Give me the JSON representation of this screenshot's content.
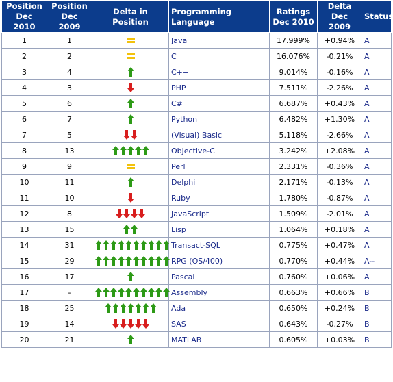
{
  "colors": {
    "header_bg": "#0c3c8c",
    "up_arrow": "#2d9a16",
    "down_arrow": "#d81e1e",
    "equal": "#f3c20c",
    "language_text": "#1a2a8a"
  },
  "headers": {
    "pos2010": [
      "Position",
      "Dec 2010"
    ],
    "pos2009": [
      "Position",
      "Dec 2009"
    ],
    "delta": "Delta in Position",
    "language": "Programming Language",
    "ratings": [
      "Ratings",
      "Dec 2010"
    ],
    "deltarating": [
      "Delta",
      "Dec 2009"
    ],
    "status": "Status"
  },
  "rows": [
    {
      "pos2010": "1",
      "pos2009": "1",
      "change": {
        "dir": "equal",
        "count": 1
      },
      "language": "Java",
      "rating": "17.999%",
      "delta": "+0.94%",
      "status": "A"
    },
    {
      "pos2010": "2",
      "pos2009": "2",
      "change": {
        "dir": "equal",
        "count": 1
      },
      "language": "C",
      "rating": "16.076%",
      "delta": "-0.21%",
      "status": "A"
    },
    {
      "pos2010": "3",
      "pos2009": "4",
      "change": {
        "dir": "up",
        "count": 1
      },
      "language": "C++",
      "rating": "9.014%",
      "delta": "-0.16%",
      "status": "A"
    },
    {
      "pos2010": "4",
      "pos2009": "3",
      "change": {
        "dir": "down",
        "count": 1
      },
      "language": "PHP",
      "rating": "7.511%",
      "delta": "-2.26%",
      "status": "A"
    },
    {
      "pos2010": "5",
      "pos2009": "6",
      "change": {
        "dir": "up",
        "count": 1
      },
      "language": "C#",
      "rating": "6.687%",
      "delta": "+0.43%",
      "status": "A"
    },
    {
      "pos2010": "6",
      "pos2009": "7",
      "change": {
        "dir": "up",
        "count": 1
      },
      "language": "Python",
      "rating": "6.482%",
      "delta": "+1.30%",
      "status": "A"
    },
    {
      "pos2010": "7",
      "pos2009": "5",
      "change": {
        "dir": "down",
        "count": 2
      },
      "language": "(Visual) Basic",
      "rating": "5.118%",
      "delta": "-2.66%",
      "status": "A"
    },
    {
      "pos2010": "8",
      "pos2009": "13",
      "change": {
        "dir": "up",
        "count": 5
      },
      "language": "Objective-C",
      "rating": "3.242%",
      "delta": "+2.08%",
      "status": "A"
    },
    {
      "pos2010": "9",
      "pos2009": "9",
      "change": {
        "dir": "equal",
        "count": 1
      },
      "language": "Perl",
      "rating": "2.331%",
      "delta": "-0.36%",
      "status": "A"
    },
    {
      "pos2010": "10",
      "pos2009": "11",
      "change": {
        "dir": "up",
        "count": 1
      },
      "language": "Delphi",
      "rating": "2.171%",
      "delta": "-0.13%",
      "status": "A"
    },
    {
      "pos2010": "11",
      "pos2009": "10",
      "change": {
        "dir": "down",
        "count": 1
      },
      "language": "Ruby",
      "rating": "1.780%",
      "delta": "-0.87%",
      "status": "A"
    },
    {
      "pos2010": "12",
      "pos2009": "8",
      "change": {
        "dir": "down",
        "count": 4
      },
      "language": "JavaScript",
      "rating": "1.509%",
      "delta": "-2.01%",
      "status": "A"
    },
    {
      "pos2010": "13",
      "pos2009": "15",
      "change": {
        "dir": "up",
        "count": 2
      },
      "language": "Lisp",
      "rating": "1.064%",
      "delta": "+0.18%",
      "status": "A"
    },
    {
      "pos2010": "14",
      "pos2009": "31",
      "change": {
        "dir": "up",
        "count": 10
      },
      "language": "Transact-SQL",
      "rating": "0.775%",
      "delta": "+0.47%",
      "status": "A"
    },
    {
      "pos2010": "15",
      "pos2009": "29",
      "change": {
        "dir": "up",
        "count": 10
      },
      "language": "RPG (OS/400)",
      "rating": "0.770%",
      "delta": "+0.44%",
      "status": "A--"
    },
    {
      "pos2010": "16",
      "pos2009": "17",
      "change": {
        "dir": "up",
        "count": 1
      },
      "language": "Pascal",
      "rating": "0.760%",
      "delta": "+0.06%",
      "status": "A"
    },
    {
      "pos2010": "17",
      "pos2009": "-",
      "change": {
        "dir": "up",
        "count": 10
      },
      "language": "Assembly",
      "rating": "0.663%",
      "delta": "+0.66%",
      "status": "B"
    },
    {
      "pos2010": "18",
      "pos2009": "25",
      "change": {
        "dir": "up",
        "count": 7
      },
      "language": "Ada",
      "rating": "0.650%",
      "delta": "+0.24%",
      "status": "B"
    },
    {
      "pos2010": "19",
      "pos2009": "14",
      "change": {
        "dir": "down",
        "count": 5
      },
      "language": "SAS",
      "rating": "0.643%",
      "delta": "-0.27%",
      "status": "B"
    },
    {
      "pos2010": "20",
      "pos2009": "21",
      "change": {
        "dir": "up",
        "count": 1
      },
      "language": "MATLAB",
      "rating": "0.605%",
      "delta": "+0.03%",
      "status": "B"
    }
  ]
}
